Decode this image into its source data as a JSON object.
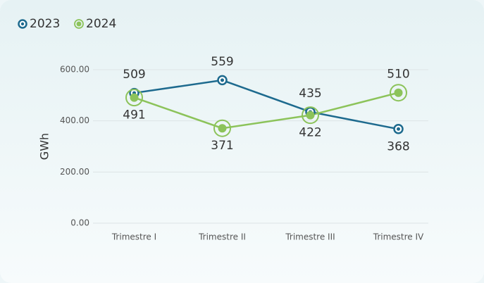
{
  "chart_data": {
    "type": "line",
    "categories": [
      "Trimestre I",
      "Trimestre II",
      "Trimestre III",
      "Trimestre IV"
    ],
    "series": [
      {
        "name": "2023",
        "color": "#1d6a8e",
        "values": [
          509,
          559,
          435,
          368
        ]
      },
      {
        "name": "2024",
        "color": "#8cc35a",
        "values": [
          491,
          371,
          422,
          510
        ]
      }
    ],
    "y_label": "GWh",
    "ylim": [
      0,
      600
    ],
    "yticks": [
      {
        "value": 0,
        "label": "0.00"
      },
      {
        "value": 200,
        "label": "200.00"
      },
      {
        "value": 400,
        "label": "400.00"
      },
      {
        "value": 600,
        "label": "600.00"
      }
    ],
    "grid": true
  }
}
